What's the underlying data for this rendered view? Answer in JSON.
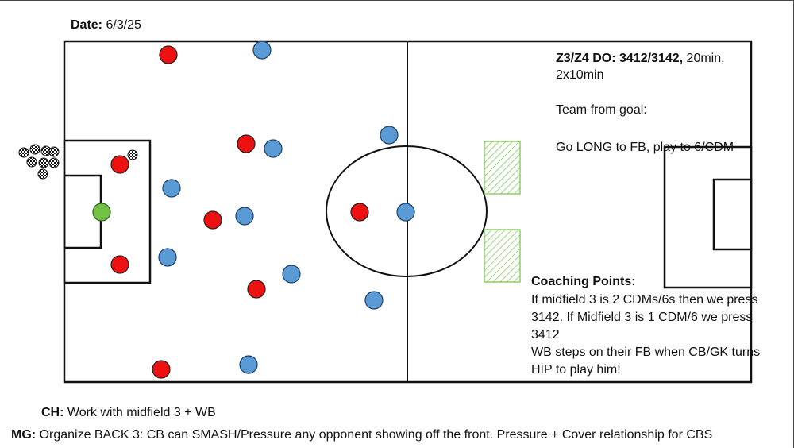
{
  "date": {
    "label": "Date:",
    "value": "6/3/25"
  },
  "session": {
    "title": "Z3/Z4 DO: 3412/3142,",
    "duration_line1": "20min,",
    "duration_line2": "2x10min",
    "team_from_goal": "Team from goal:",
    "instruction": "Go LONG to FB, play to 6/CDM"
  },
  "coaching_points": {
    "heading": "Coaching Points:",
    "lines": [
      "If midfield 3 is 2 CDMs/6s then we press",
      "3142. If Midfield 3 is 1 CDM/6 we press",
      "3412",
      "WB steps on their FB when CB/GK turns",
      "HIP to play him!"
    ]
  },
  "notes": {
    "ch_label": "CH:",
    "ch_text": "Work with midfield 3 + WB",
    "mg_label": "MG:",
    "mg_text": "Organize BACK 3: CB can SMASH/Pressure any opponent showing off the front. Pressure + Cover relationship for CBS"
  },
  "colors": {
    "red_team": "#ee1111",
    "blue_team": "#5b9bd5",
    "goalkeeper": "#70c144",
    "line": "#111111",
    "zone_hatch": "#70c144"
  }
}
